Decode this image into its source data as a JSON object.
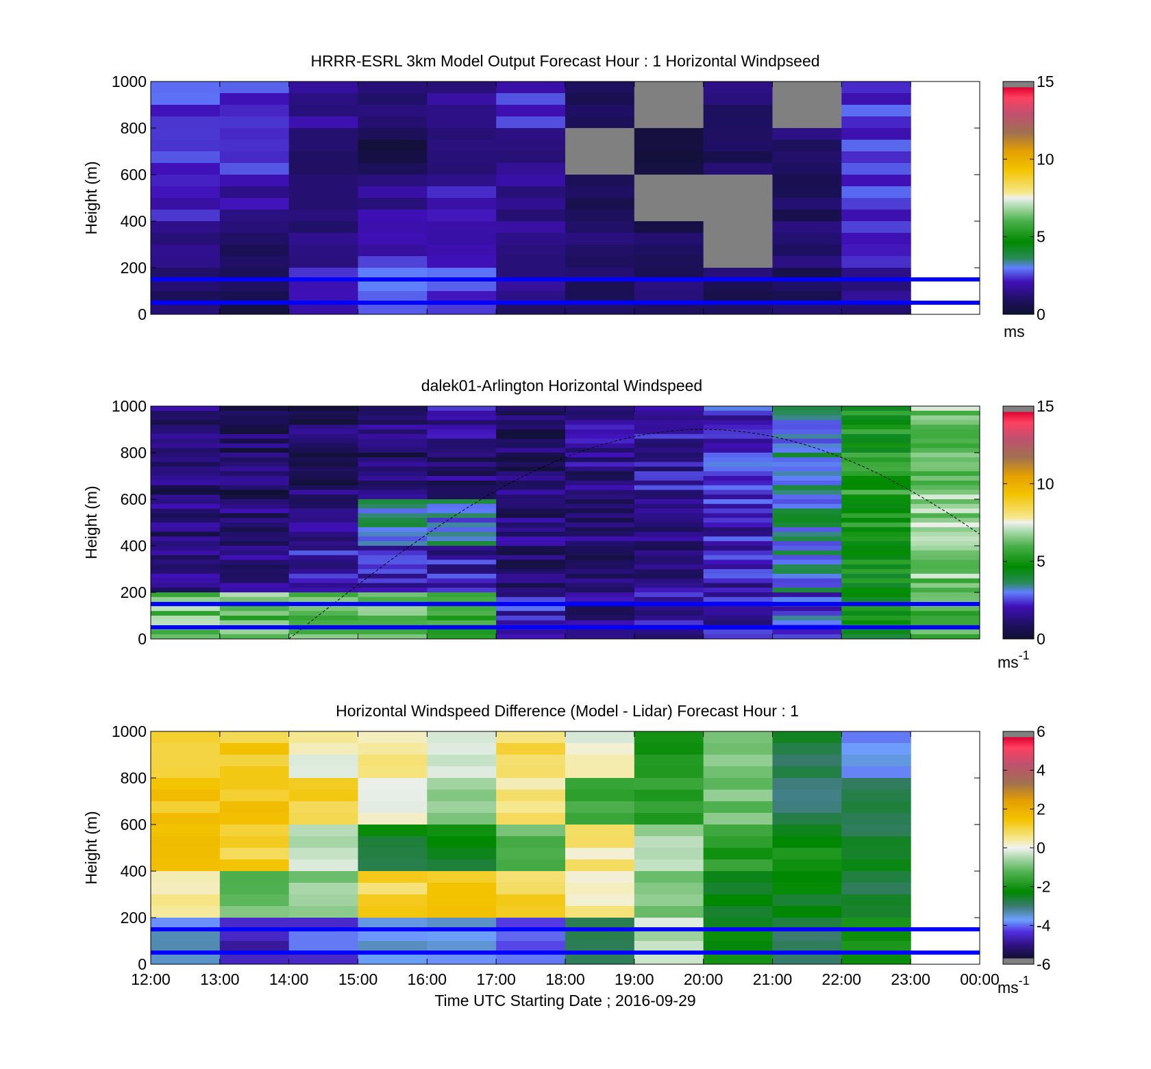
{
  "chart_data": [
    {
      "type": "heatmap",
      "title": "HRRR-ESRL 3km Model Output   Forecast Hour : 1 Horizontal Windpseed",
      "xlabel": "",
      "ylabel": "Height (m)",
      "xlim": [
        "12:00",
        "00:00"
      ],
      "ylim": [
        0,
        1000
      ],
      "yticks": [
        0,
        200,
        400,
        600,
        800,
        1000
      ],
      "ytick_labels": [
        "0",
        "200",
        "400",
        "600",
        "800",
        "1000"
      ],
      "colorbar": {
        "range": [
          0,
          15
        ],
        "ticks": [
          "0",
          "5",
          "10",
          "15"
        ],
        "unit": "ms",
        "unit_sup": ""
      },
      "hour_columns": [
        "12:00",
        "13:00",
        "14:00",
        "15:00",
        "16:00",
        "17:00",
        "18:00",
        "19:00",
        "20:00",
        "21:00",
        "22:00"
      ],
      "height_levels_m": [
        1000,
        800,
        600,
        400,
        200,
        0
      ],
      "windspeed_ms": [
        [
          2.5,
          2.4,
          1.6,
          1.3,
          1.6,
          2.3,
          0.9,
          null,
          1.2,
          null,
          2.4
        ],
        [
          2.3,
          2.4,
          1.2,
          0.6,
          0.9,
          1.2,
          null,
          0.5,
          0.8,
          1.0,
          2.4
        ],
        [
          2.2,
          1.7,
          1.0,
          1.6,
          1.9,
          1.6,
          1.0,
          null,
          null,
          0.9,
          2.4
        ],
        [
          1.6,
          0.8,
          1.2,
          2.2,
          2.3,
          1.4,
          1.0,
          0.8,
          null,
          1.0,
          2.2
        ],
        [
          0.8,
          0.7,
          2.0,
          2.8,
          2.6,
          1.3,
          1.0,
          0.9,
          0.8,
          0.8,
          1.4
        ]
      ],
      "reference_lines_m": [
        150,
        50
      ],
      "colors": {
        "missing": "#808080",
        "reference_line": "#0000ff"
      }
    },
    {
      "type": "heatmap",
      "title": "dalek01-Arlington  Horizontal Windspeed",
      "xlabel": "",
      "ylabel": "Height (m)",
      "xlim": [
        "12:00",
        "00:00"
      ],
      "ylim": [
        0,
        1000
      ],
      "yticks": [
        0,
        200,
        400,
        600,
        800,
        1000
      ],
      "ytick_labels": [
        "0",
        "200",
        "400",
        "600",
        "800",
        "1000"
      ],
      "colorbar": {
        "range": [
          0,
          15
        ],
        "ticks": [
          "0",
          "5",
          "10",
          "15"
        ],
        "unit": "ms",
        "unit_sup": "-1"
      },
      "hour_columns": [
        "12:00",
        "13:00",
        "14:00",
        "15:00",
        "16:00",
        "17:00",
        "18:00",
        "19:00",
        "20:00",
        "21:00",
        "22:00",
        "23:00"
      ],
      "height_levels_m": [
        1000,
        800,
        600,
        400,
        200,
        0
      ],
      "windspeed_ms": [
        [
          1.2,
          1.0,
          1.0,
          1.3,
          1.8,
          1.0,
          1.5,
          1.8,
          2.2,
          3.0,
          5.0,
          6.5
        ],
        [
          1.0,
          0.9,
          0.9,
          1.0,
          1.2,
          1.1,
          1.4,
          1.9,
          2.3,
          3.5,
          5.5,
          6.5
        ],
        [
          1.2,
          1.2,
          1.2,
          3.5,
          3.2,
          1.2,
          1.4,
          1.7,
          2.1,
          3.4,
          5.2,
          6.6
        ],
        [
          1.4,
          1.4,
          1.8,
          2.2,
          1.9,
          1.0,
          0.9,
          1.6,
          1.9,
          3.2,
          4.8,
          6.4
        ],
        [
          6.3,
          6.1,
          5.8,
          5.9,
          5.4,
          2.0,
          1.3,
          1.7,
          2.0,
          2.6,
          4.6,
          6.2
        ]
      ],
      "reference_lines_m": [
        150,
        50
      ],
      "colors": {
        "missing": "#808080",
        "reference_line": "#0000ff",
        "dashed_curve": "#000000"
      }
    },
    {
      "type": "heatmap",
      "title": "Horizontal Windspeed Difference (Model - Lidar) Forecast Hour : 1",
      "xlabel": "Time UTC  Starting Date ; 2016-09-29",
      "ylabel": "Height (m)",
      "xlim": [
        "12:00",
        "00:00"
      ],
      "ylim": [
        0,
        1000
      ],
      "xticks": [
        "12:00",
        "13:00",
        "14:00",
        "15:00",
        "16:00",
        "17:00",
        "18:00",
        "19:00",
        "20:00",
        "21:00",
        "22:00",
        "23:00",
        "00:00"
      ],
      "yticks": [
        0,
        200,
        400,
        600,
        800,
        1000
      ],
      "ytick_labels": [
        "0",
        "200",
        "400",
        "600",
        "800",
        "1000"
      ],
      "colorbar": {
        "range": [
          -6,
          6
        ],
        "ticks": [
          "-6",
          "-4",
          "-2",
          "0",
          "2",
          "4",
          "6"
        ],
        "unit": "ms",
        "unit_sup": "-1"
      },
      "hour_columns": [
        "12:00",
        "13:00",
        "14:00",
        "15:00",
        "16:00",
        "17:00",
        "18:00",
        "19:00",
        "20:00",
        "21:00",
        "22:00"
      ],
      "height_levels_m": [
        1000,
        800,
        600,
        400,
        200,
        0
      ],
      "windspeed_difference_ms": [
        [
          0.8,
          1.2,
          0.2,
          0.4,
          -0.3,
          0.9,
          0.1,
          -1.8,
          -0.9,
          -2.8,
          -3.8
        ],
        [
          1.3,
          1.3,
          1.0,
          0.0,
          -0.6,
          0.5,
          -1.5,
          -1.6,
          -1.0,
          -2.8,
          -2.8
        ],
        [
          1.4,
          1.1,
          -0.5,
          -2.5,
          -2.4,
          -1.2,
          0.5,
          -0.6,
          -1.8,
          -2.2,
          -2.6
        ],
        [
          0.4,
          -1.2,
          -0.8,
          1.0,
          1.4,
          1.0,
          0.4,
          -0.9,
          -2.4,
          -2.5,
          -2.6
        ],
        [
          -3.5,
          -4.5,
          -4.2,
          -3.6,
          -3.8,
          -4.0,
          -2.8,
          -0.4,
          -2.2,
          -2.8,
          -2.2
        ]
      ],
      "reference_lines_m": [
        150,
        50
      ],
      "colors": {
        "missing": "#808080",
        "reference_line": "#0000ff"
      }
    }
  ]
}
